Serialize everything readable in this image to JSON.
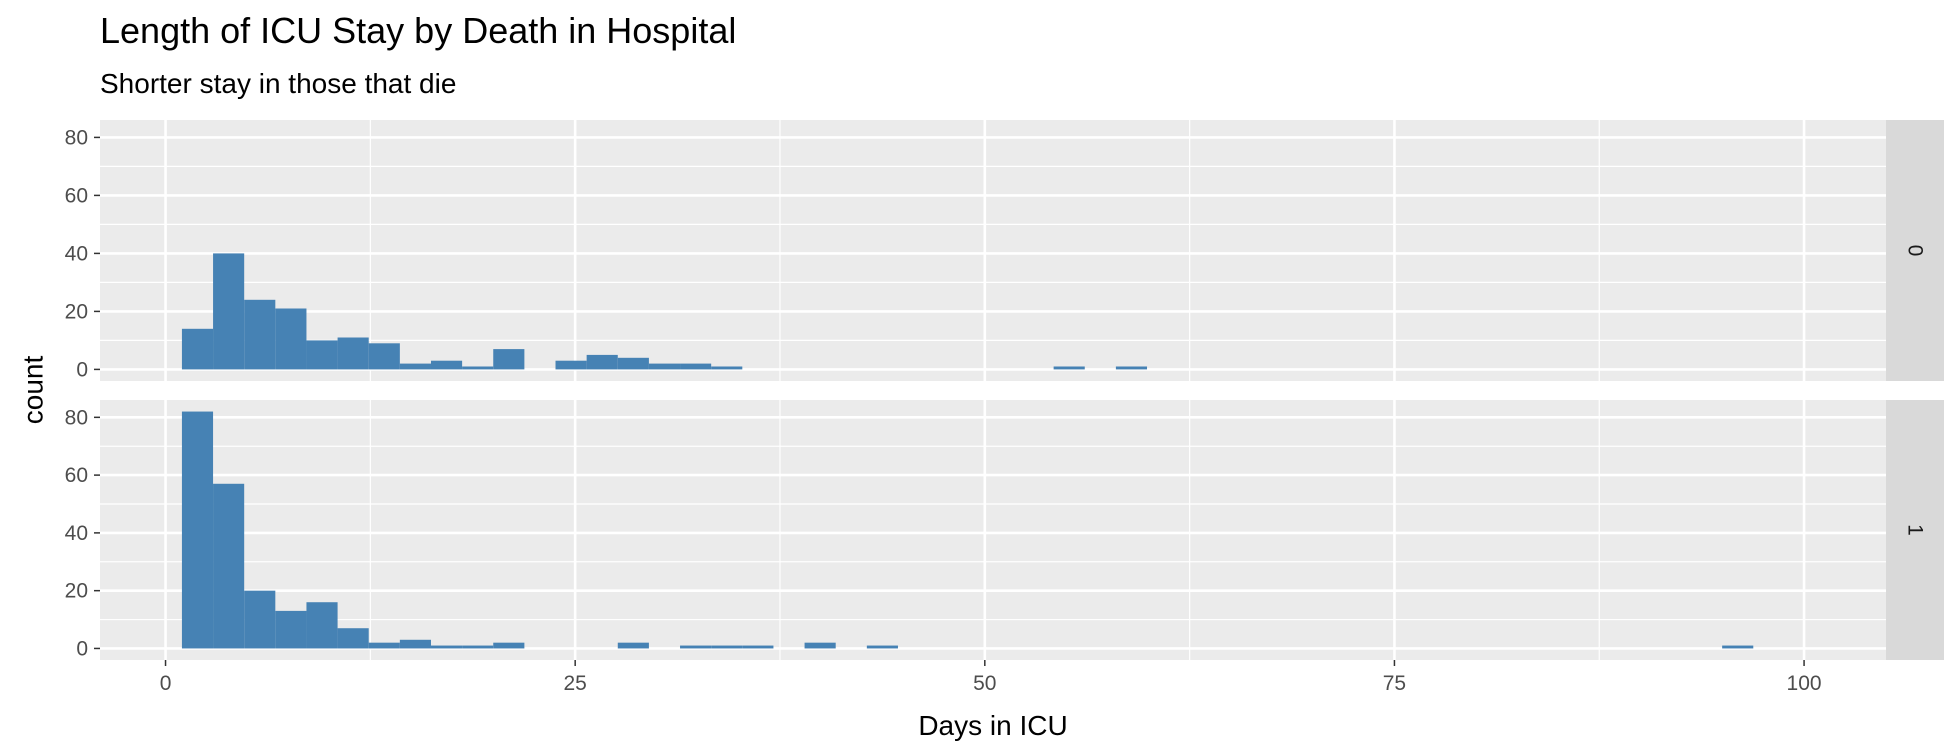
{
  "chart_data": {
    "type": "histogram-faceted",
    "title": "Length of ICU Stay by Death in Hospital",
    "subtitle": "Shorter stay in those that die",
    "xlabel": "Days in ICU",
    "ylabel": "count",
    "xlim": [
      -4,
      105
    ],
    "ylim": [
      -4,
      86
    ],
    "x_ticks": [
      0,
      25,
      50,
      75,
      100
    ],
    "y_ticks": [
      0,
      20,
      40,
      60,
      80
    ],
    "bin_width": 1.9,
    "bar_color": "#4682B4",
    "panel_background": "#EBEBEB",
    "strip_background": "#D9D9D9",
    "grid": true,
    "facets": [
      {
        "label": "0",
        "bins": [
          {
            "x0": 1.0,
            "count": 14
          },
          {
            "x0": 2.9,
            "count": 40
          },
          {
            "x0": 4.8,
            "count": 24
          },
          {
            "x0": 6.7,
            "count": 21
          },
          {
            "x0": 8.6,
            "count": 10
          },
          {
            "x0": 10.5,
            "count": 11
          },
          {
            "x0": 12.4,
            "count": 9
          },
          {
            "x0": 14.3,
            "count": 2
          },
          {
            "x0": 16.2,
            "count": 3
          },
          {
            "x0": 18.1,
            "count": 1
          },
          {
            "x0": 20.0,
            "count": 7
          },
          {
            "x0": 23.8,
            "count": 3
          },
          {
            "x0": 25.7,
            "count": 5
          },
          {
            "x0": 27.6,
            "count": 4
          },
          {
            "x0": 29.5,
            "count": 2
          },
          {
            "x0": 31.4,
            "count": 2
          },
          {
            "x0": 33.3,
            "count": 1
          },
          {
            "x0": 54.2,
            "count": 1
          },
          {
            "x0": 58.0,
            "count": 1
          }
        ]
      },
      {
        "label": "1",
        "bins": [
          {
            "x0": 1.0,
            "count": 82
          },
          {
            "x0": 2.9,
            "count": 57
          },
          {
            "x0": 4.8,
            "count": 20
          },
          {
            "x0": 6.7,
            "count": 13
          },
          {
            "x0": 8.6,
            "count": 16
          },
          {
            "x0": 10.5,
            "count": 7
          },
          {
            "x0": 12.4,
            "count": 2
          },
          {
            "x0": 14.3,
            "count": 3
          },
          {
            "x0": 16.2,
            "count": 1
          },
          {
            "x0": 18.1,
            "count": 1
          },
          {
            "x0": 20.0,
            "count": 2
          },
          {
            "x0": 27.6,
            "count": 2
          },
          {
            "x0": 31.4,
            "count": 1
          },
          {
            "x0": 33.3,
            "count": 1
          },
          {
            "x0": 35.2,
            "count": 1
          },
          {
            "x0": 39.0,
            "count": 2
          },
          {
            "x0": 42.8,
            "count": 1
          },
          {
            "x0": 95.0,
            "count": 1
          }
        ]
      }
    ]
  }
}
